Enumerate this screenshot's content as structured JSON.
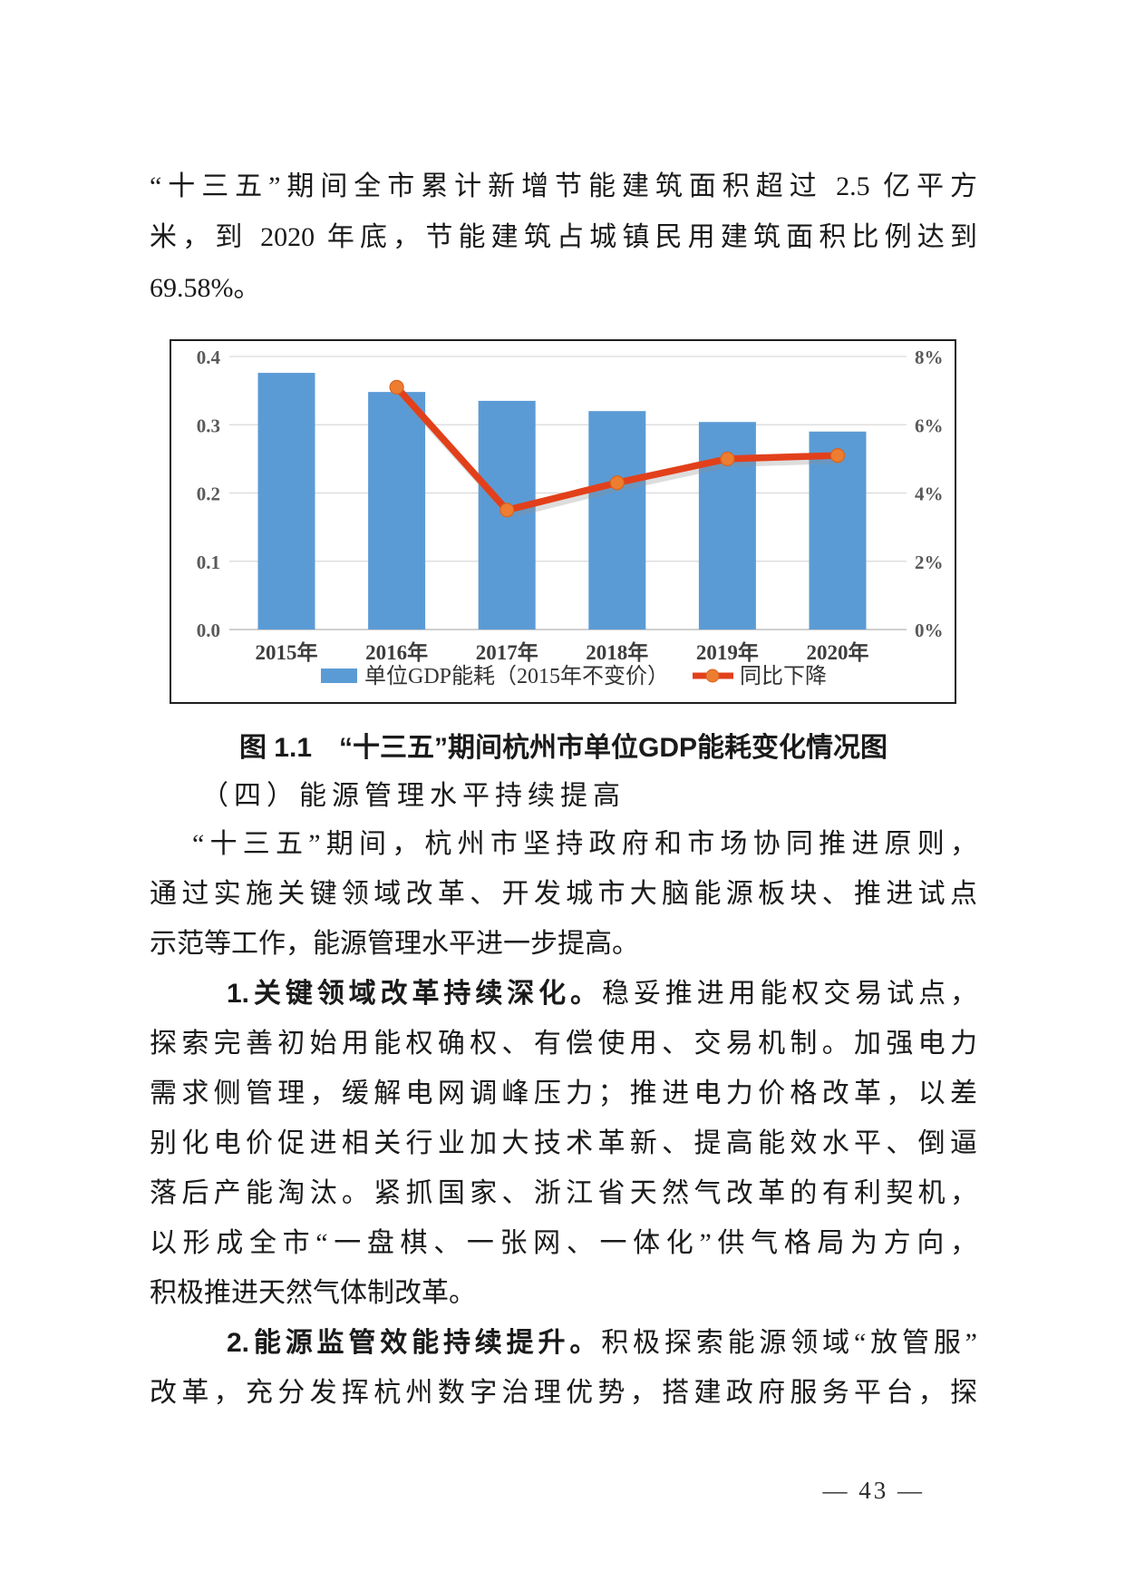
{
  "page": {
    "page_number": "— 43 —"
  },
  "paragraph1": {
    "lines": [
      "“十三五”期间全市累计新增节能建筑面积超过 2.5 亿平方",
      "米，到 2020 年底，节能建筑占城镇民用建筑面积比例达到",
      "69.58%。"
    ]
  },
  "figure": {
    "caption": "图 1.1　“十三五”期间杭州市单位GDP能耗变化情况图"
  },
  "chart_data": {
    "type": "bar+line",
    "categories": [
      "2015年",
      "2016年",
      "2017年",
      "2018年",
      "2019年",
      "2020年"
    ],
    "series": [
      {
        "name": "单位GDP能耗（2015年不变价）",
        "type": "bar",
        "axis": "left",
        "color": "#5B9BD5",
        "values": [
          0.376,
          0.348,
          0.335,
          0.32,
          0.304,
          0.29
        ]
      },
      {
        "name": "同比下降",
        "type": "line",
        "axis": "right",
        "color": "#E2401B",
        "marker_color": "#ED7D31",
        "values": [
          null,
          7.1,
          3.5,
          4.3,
          5.0,
          5.1
        ]
      }
    ],
    "left_axis": {
      "min": 0.0,
      "max": 0.4,
      "ticks": [
        "0.4",
        "0.3",
        "0.2",
        "0.1",
        "0.0"
      ]
    },
    "right_axis": {
      "min": 0,
      "max": 8,
      "ticks": [
        "8%",
        "6%",
        "4%",
        "2%",
        "0%"
      ]
    },
    "grid": true,
    "gridline_color": "#D9D9D9",
    "legend_position": "bottom-inside",
    "title": ""
  },
  "section": {
    "heading": "（四）能源管理水平持续提高"
  },
  "paragraph2": {
    "lines": [
      "“十三五”期间，杭州市坚持政府和市场协同推进原则，",
      "通过实施关键领域改革、开发城市大脑能源板块、推进试点",
      "示范等工作，能源管理水平进一步提高。"
    ]
  },
  "paragraph3": {
    "lead_bold": "1.关键领域改革持续深化。",
    "lead_rest": "稳妥推进用能权交易试点，",
    "lines": [
      "探索完善初始用能权确权、有偿使用、交易机制。加强电力",
      "需求侧管理，缓解电网调峰压力；推进电力价格改革，以差",
      "别化电价促进相关行业加大技术革新、提高能效水平、倒逼",
      "落后产能淘汰。紧抓国家、浙江省天然气改革的有利契机，",
      "以形成全市“一盘棋、一张网、一体化”供气格局为方向，",
      "积极推进天然气体制改革。"
    ]
  },
  "paragraph4": {
    "lead_bold": "2.能源监管效能持续提升。",
    "lead_rest": "积极探索能源领域“放管服”",
    "lines": [
      "改革，充分发挥杭州数字治理优势，搭建政府服务平台，探"
    ]
  }
}
